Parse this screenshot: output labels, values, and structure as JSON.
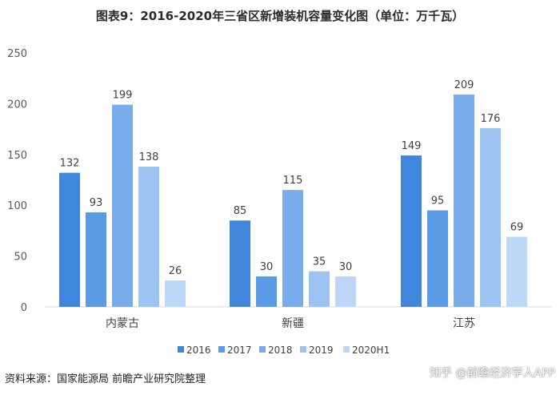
{
  "chart_data": {
    "type": "bar",
    "title": "图表9：2016-2020年三省区新增装机容量变化图（单位：万千瓦）",
    "categories": [
      "内蒙古",
      "新疆",
      "江苏"
    ],
    "series": [
      {
        "name": "2016",
        "values": [
          132,
          85,
          149
        ],
        "color": "#3f86dc"
      },
      {
        "name": "2017",
        "values": [
          93,
          30,
          95
        ],
        "color": "#5b9ae4"
      },
      {
        "name": "2018",
        "values": [
          199,
          115,
          209
        ],
        "color": "#79acea"
      },
      {
        "name": "2019",
        "values": [
          138,
          35,
          176
        ],
        "color": "#9cc3f1"
      },
      {
        "name": "2020H1",
        "values": [
          26,
          30,
          69
        ],
        "color": "#bcd7f7"
      }
    ],
    "ylim": [
      0,
      250
    ],
    "yticks": [
      0,
      50,
      100,
      150,
      200,
      250
    ],
    "xlabel": "",
    "ylabel": "",
    "grid": false,
    "legend_position": "bottom"
  },
  "footer": {
    "source": "资料来源：国家能源局  前瞻产业研究院整理",
    "watermark": "知乎 @前瞻经济学人APP"
  }
}
